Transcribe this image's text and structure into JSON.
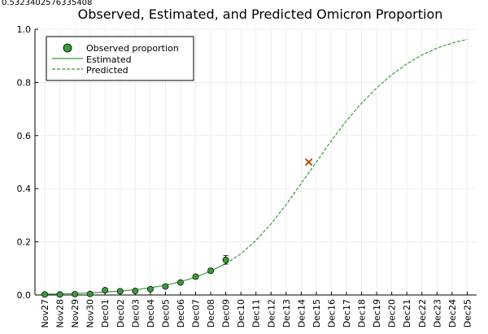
{
  "chart_data": {
    "type": "line",
    "title": "Observed, Estimated, and Predicted Omicron Proportion",
    "corner_label": "0.5323402576335408",
    "xlabel": "",
    "ylabel": "",
    "xlim": [
      0,
      28
    ],
    "ylim": [
      0,
      1
    ],
    "yticks": [
      0.0,
      0.2,
      0.4,
      0.6,
      0.8,
      1.0
    ],
    "ytick_labels": [
      "0.0",
      "0.2",
      "0.4",
      "0.6",
      "0.8",
      "1.0"
    ],
    "categories": [
      "Nov27",
      "Nov28",
      "Nov29",
      "Nov30",
      "Dec01",
      "Dec02",
      "Dec03",
      "Dec04",
      "Dec05",
      "Dec06",
      "Dec07",
      "Dec08",
      "Dec09",
      "Dec10",
      "Dec11",
      "Dec12",
      "Dec13",
      "Dec14",
      "Dec15",
      "Dec16",
      "Dec17",
      "Dec18",
      "Dec19",
      "Dec20",
      "Dec21",
      "Dec22",
      "Dec23",
      "Dec24",
      "Dec25"
    ],
    "grid": true,
    "legend_position": "top-left",
    "series": [
      {
        "name": "Observed proportion",
        "kind": "scatter",
        "color": "#3a9b3a",
        "x": [
          0,
          1,
          2,
          3,
          4,
          5,
          6,
          7,
          8,
          9,
          10,
          11,
          12
        ],
        "y": [
          0.002,
          0.002,
          0.003,
          0.004,
          0.018,
          0.014,
          0.015,
          0.022,
          0.032,
          0.047,
          0.069,
          0.091,
          0.132
        ],
        "err": [
          0.001,
          0.001,
          0.001,
          0.002,
          0.004,
          0.003,
          0.003,
          0.003,
          0.004,
          0.005,
          0.006,
          0.008,
          0.016
        ]
      },
      {
        "name": "Estimated",
        "kind": "line",
        "style": "solid",
        "color": "#3a9b3a",
        "x": [
          0,
          1,
          2,
          3,
          4,
          5,
          6,
          7,
          8,
          9,
          10,
          11,
          12
        ],
        "y": [
          0.003,
          0.004,
          0.006,
          0.008,
          0.011,
          0.015,
          0.02,
          0.027,
          0.037,
          0.05,
          0.067,
          0.09,
          0.118
        ]
      },
      {
        "name": "Predicted",
        "kind": "line",
        "style": "dashed",
        "color": "#3a9b3a",
        "x": [
          12,
          13,
          14,
          15,
          16,
          17,
          18,
          19,
          20,
          21,
          22,
          23,
          24,
          25,
          26,
          27,
          28
        ],
        "y": [
          0.118,
          0.155,
          0.205,
          0.268,
          0.34,
          0.42,
          0.5,
          0.581,
          0.656,
          0.722,
          0.779,
          0.829,
          0.87,
          0.903,
          0.929,
          0.948,
          0.962
        ]
      }
    ],
    "marker": {
      "x": 17.5,
      "y": 0.5,
      "color": "#e8701a"
    }
  }
}
